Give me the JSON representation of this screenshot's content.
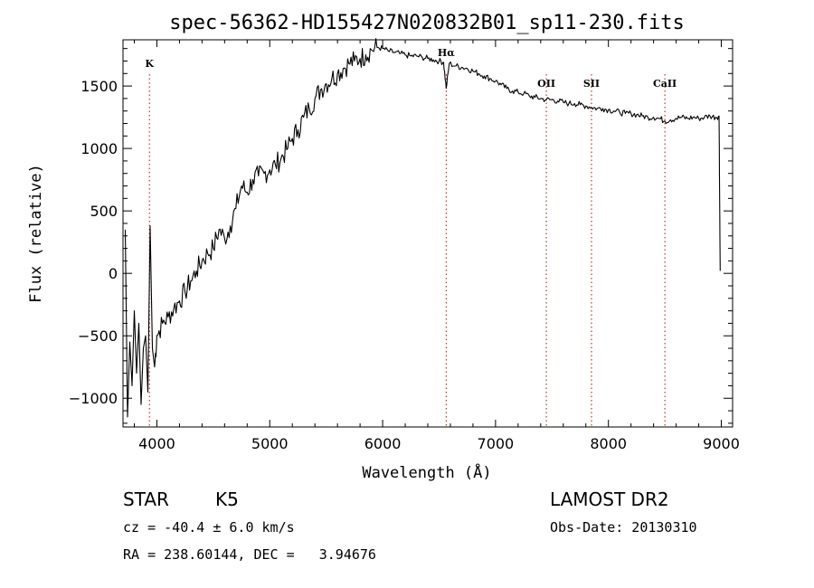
{
  "chart_data": {
    "type": "line",
    "title": "spec-56362-HD155427N020832B01_sp11-230.fits",
    "xlabel": "Wavelength (Å)",
    "ylabel": "Flux (relative)",
    "xlim": [
      3700,
      9100
    ],
    "ylim": [
      -1230,
      1870
    ],
    "x_ticks": [
      4000,
      5000,
      6000,
      7000,
      8000,
      9000
    ],
    "y_ticks": [
      -1000,
      -500,
      0,
      500,
      1000,
      1500
    ],
    "grid": false,
    "legend": "none",
    "series": [
      {
        "points": [
          [
            3720,
            350
          ],
          [
            3740,
            -1150
          ],
          [
            3760,
            -550
          ],
          [
            3780,
            -900
          ],
          [
            3800,
            -300
          ],
          [
            3820,
            -800
          ],
          [
            3840,
            -400
          ],
          [
            3860,
            -1050
          ],
          [
            3880,
            -600
          ],
          [
            3900,
            -500
          ],
          [
            3920,
            -950
          ],
          [
            3940,
            380
          ],
          [
            3960,
            -600
          ],
          [
            3980,
            -750
          ],
          [
            4000,
            -500
          ],
          [
            4050,
            -400
          ],
          [
            4100,
            -350
          ],
          [
            4150,
            -280
          ],
          [
            4200,
            -220
          ],
          [
            4250,
            -150
          ],
          [
            4300,
            -60
          ],
          [
            4350,
            20
          ],
          [
            4400,
            100
          ],
          [
            4450,
            160
          ],
          [
            4500,
            200
          ],
          [
            4550,
            350
          ],
          [
            4600,
            280
          ],
          [
            4650,
            380
          ],
          [
            4700,
            520
          ],
          [
            4750,
            700
          ],
          [
            4800,
            650
          ],
          [
            4850,
            750
          ],
          [
            4900,
            780
          ],
          [
            4950,
            800
          ],
          [
            5000,
            830
          ],
          [
            5050,
            870
          ],
          [
            5100,
            920
          ],
          [
            5150,
            990
          ],
          [
            5200,
            1080
          ],
          [
            5250,
            1150
          ],
          [
            5300,
            1250
          ],
          [
            5350,
            1320
          ],
          [
            5400,
            1400
          ],
          [
            5450,
            1470
          ],
          [
            5500,
            1520
          ],
          [
            5550,
            1560
          ],
          [
            5600,
            1600
          ],
          [
            5650,
            1640
          ],
          [
            5700,
            1680
          ],
          [
            5750,
            1700
          ],
          [
            5800,
            1720
          ],
          [
            5850,
            1750
          ],
          [
            5900,
            1790
          ],
          [
            5950,
            1810
          ],
          [
            6000,
            1800
          ],
          [
            6050,
            1780
          ],
          [
            6100,
            1770
          ],
          [
            6150,
            1760
          ],
          [
            6200,
            1750
          ],
          [
            6250,
            1740
          ],
          [
            6300,
            1740
          ],
          [
            6350,
            1730
          ],
          [
            6400,
            1720
          ],
          [
            6450,
            1710
          ],
          [
            6500,
            1700
          ],
          [
            6540,
            1690
          ],
          [
            6563,
            1480
          ],
          [
            6590,
            1680
          ],
          [
            6650,
            1660
          ],
          [
            6700,
            1650
          ],
          [
            6750,
            1640
          ],
          [
            6800,
            1620
          ],
          [
            6850,
            1600
          ],
          [
            6900,
            1580
          ],
          [
            6950,
            1560
          ],
          [
            7000,
            1540
          ],
          [
            7050,
            1510
          ],
          [
            7100,
            1480
          ],
          [
            7150,
            1460
          ],
          [
            7200,
            1450
          ],
          [
            7250,
            1440
          ],
          [
            7300,
            1420
          ],
          [
            7350,
            1410
          ],
          [
            7400,
            1400
          ],
          [
            7450,
            1390
          ],
          [
            7500,
            1390
          ],
          [
            7550,
            1380
          ],
          [
            7600,
            1370
          ],
          [
            7650,
            1360
          ],
          [
            7700,
            1360
          ],
          [
            7750,
            1350
          ],
          [
            7800,
            1340
          ],
          [
            7850,
            1330
          ],
          [
            7900,
            1320
          ],
          [
            7950,
            1320
          ],
          [
            8000,
            1310
          ],
          [
            8050,
            1300
          ],
          [
            8100,
            1290
          ],
          [
            8150,
            1280
          ],
          [
            8200,
            1280
          ],
          [
            8250,
            1270
          ],
          [
            8300,
            1260
          ],
          [
            8350,
            1250
          ],
          [
            8400,
            1250
          ],
          [
            8450,
            1240
          ],
          [
            8500,
            1220
          ],
          [
            8550,
            1230
          ],
          [
            8600,
            1240
          ],
          [
            8650,
            1250
          ],
          [
            8700,
            1240
          ],
          [
            8750,
            1250
          ],
          [
            8800,
            1240
          ],
          [
            8850,
            1250
          ],
          [
            8900,
            1260
          ],
          [
            8950,
            1250
          ],
          [
            8980,
            1260
          ],
          [
            8990,
            20
          ]
        ]
      }
    ],
    "annotations": [
      {
        "label": "K",
        "x": 3934
      },
      {
        "label": "Hα",
        "x": 6563
      },
      {
        "label": "OII",
        "x": 7450
      },
      {
        "label": "SII",
        "x": 7850
      },
      {
        "label": "CaII",
        "x": 8500
      }
    ],
    "colors": {
      "spectrum": "#000000",
      "marker": "#cc0000",
      "axes": "#000000"
    }
  },
  "info": {
    "object_class": "STAR",
    "spectral_type": "K5",
    "survey": "LAMOST DR2",
    "redshift": "cz = -40.4 ± 6.0 km/s",
    "obs_date": "Obs-Date: 20130310",
    "coords": "RA = 238.60144, DEC =   3.94676"
  }
}
